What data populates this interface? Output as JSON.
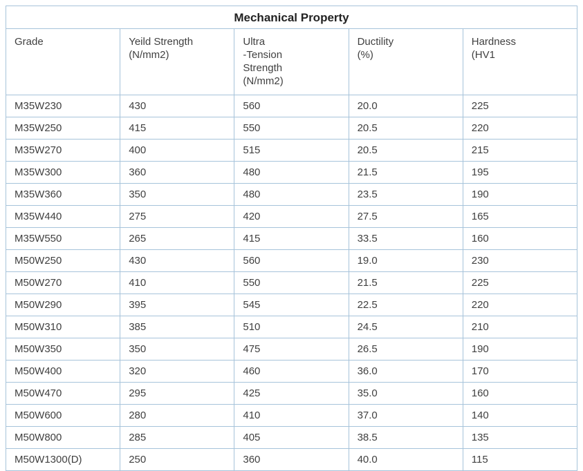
{
  "table": {
    "title": "Mechanical Property",
    "columns": [
      {
        "lines": [
          "Grade"
        ]
      },
      {
        "lines": [
          "Yeild Strength",
          "(N/mm2)"
        ]
      },
      {
        "lines": [
          "Ultra",
          "-Tension",
          "Strength",
          "(N/mm2)"
        ]
      },
      {
        "lines": [
          "Ductility",
          "(%)"
        ]
      },
      {
        "lines": [
          "Hardness",
          "(HV1"
        ]
      }
    ],
    "rows": [
      [
        "M35W230",
        "430",
        "560",
        "20.0",
        "225"
      ],
      [
        "M35W250",
        "415",
        "550",
        "20.5",
        "220"
      ],
      [
        "M35W270",
        "400",
        "515",
        "20.5",
        "215"
      ],
      [
        "M35W300",
        "360",
        "480",
        "21.5",
        "195"
      ],
      [
        "M35W360",
        "350",
        "480",
        "23.5",
        "190"
      ],
      [
        "M35W440",
        "275",
        "420",
        "27.5",
        "165"
      ],
      [
        "M35W550",
        "265",
        "415",
        "33.5",
        "160"
      ],
      [
        "M50W250",
        "430",
        "560",
        "19.0",
        "230"
      ],
      [
        "M50W270",
        "410",
        "550",
        "21.5",
        "225"
      ],
      [
        "M50W290",
        "395",
        "545",
        "22.5",
        "220"
      ],
      [
        "M50W310",
        "385",
        "510",
        "24.5",
        "210"
      ],
      [
        "M50W350",
        "350",
        "475",
        "26.5",
        "190"
      ],
      [
        "M50W400",
        "320",
        "460",
        "36.0",
        "170"
      ],
      [
        "M50W470",
        "295",
        "425",
        "35.0",
        "160"
      ],
      [
        "M50W600",
        "280",
        "410",
        "37.0",
        "140"
      ],
      [
        "M50W800",
        "285",
        "405",
        "38.5",
        "135"
      ],
      [
        "M50W1300(D)",
        "250",
        "360",
        "40.0",
        "115"
      ]
    ],
    "style": {
      "border_color": "#a6c3da",
      "text_color": "#404040",
      "title_color": "#222222"
    }
  }
}
